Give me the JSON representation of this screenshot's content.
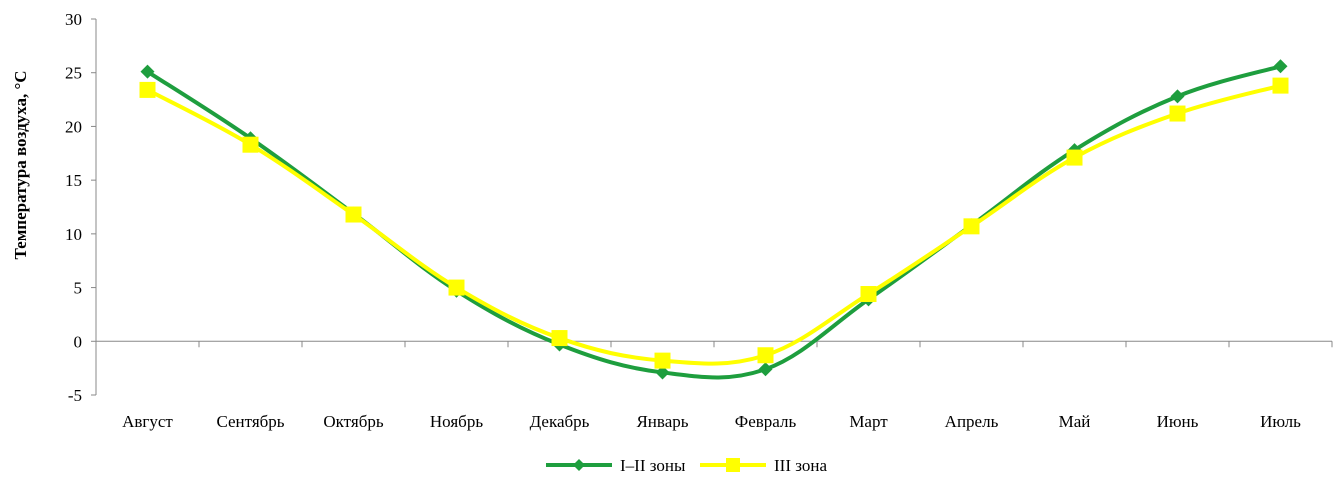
{
  "chart_data": {
    "type": "line",
    "ylabel": "Температура воздуха, °С",
    "ylim": [
      -5,
      30
    ],
    "yticks": [
      -5,
      0,
      5,
      10,
      15,
      20,
      25,
      30
    ],
    "categories": [
      "Август",
      "Сентябрь",
      "Октябрь",
      "Ноябрь",
      "Декабрь",
      "Январь",
      "Февраль",
      "Март",
      "Апрель",
      "Май",
      "Июнь",
      "Июль"
    ],
    "series": [
      {
        "name": "I–II зоны",
        "color": "#1e9e3e",
        "marker": "diamond",
        "values": [
          25.1,
          18.9,
          11.9,
          4.7,
          -0.3,
          -2.9,
          -2.6,
          3.9,
          10.8,
          17.8,
          22.8,
          25.6
        ]
      },
      {
        "name": "III зона",
        "color": "#ffff00",
        "marker": "square",
        "values": [
          23.4,
          18.3,
          11.8,
          5.0,
          0.3,
          -1.8,
          -1.3,
          4.4,
          10.7,
          17.1,
          21.2,
          23.8
        ]
      }
    ],
    "legend": "bottom-center",
    "grid": false
  }
}
